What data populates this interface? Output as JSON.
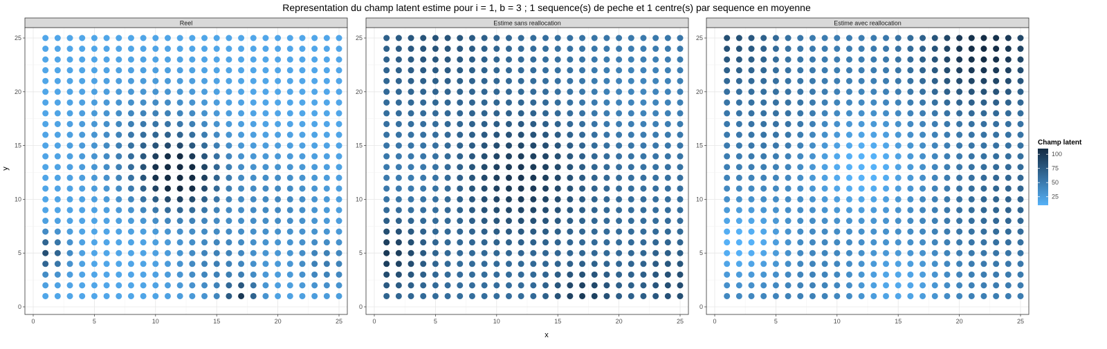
{
  "title": "Representation du champ latent estime pour i = 1, b = 3 ; 1 sequence(s) de peche et 1 centre(s) par sequence en moyenne",
  "xlabel": "x",
  "ylabel": "y",
  "legend": {
    "title": "Champ latent",
    "ticks": [
      25,
      50,
      75,
      100
    ],
    "range": [
      10,
      110
    ],
    "color_low": "#56B1F7",
    "color_high": "#132B43",
    "placement": "right"
  },
  "chart_data": {
    "type": "scatter",
    "description_of_fill": "points on a 25x25 integer grid colored by a continuous latent field value",
    "x_range": [
      0,
      25
    ],
    "y_range": [
      0,
      25
    ],
    "x_ticks": [
      0,
      5,
      10,
      15,
      20,
      25
    ],
    "y_ticks": [
      0,
      5,
      10,
      15,
      20,
      25
    ],
    "grid": true,
    "grid_x": [
      1,
      25
    ],
    "grid_y": [
      1,
      25
    ],
    "facets": [
      {
        "label": "Reel",
        "field_params": {
          "base": 18,
          "bumps": [
            {
              "cx": 12,
              "cy": 12,
              "amp": 92,
              "s": 2.2
            },
            {
              "cx": 10,
              "cy": 15,
              "amp": 38,
              "s": 3.5
            },
            {
              "cx": 1,
              "cy": 5,
              "amp": 65,
              "s": 1.3
            },
            {
              "cx": 17,
              "cy": 1,
              "amp": 72,
              "s": 1.0
            },
            {
              "cx": 15,
              "cy": 4,
              "amp": 28,
              "s": 2.5
            },
            {
              "cx": 24,
              "cy": 4,
              "amp": 30,
              "s": 1.8
            },
            {
              "cx": 20,
              "cy": 10,
              "amp": 22,
              "s": 3.0
            }
          ]
        }
      },
      {
        "label": "Estime sans reallocation",
        "field_params": {
          "base": 60,
          "bumps": [
            {
              "cx": 12,
              "cy": 12,
              "amp": 42,
              "s": 3.5
            },
            {
              "cx": 1,
              "cy": 5,
              "amp": 40,
              "s": 2.2
            },
            {
              "cx": 17,
              "cy": 1,
              "amp": 38,
              "s": 1.8
            },
            {
              "cx": 25,
              "cy": 2,
              "amp": 25,
              "s": 2.5
            },
            {
              "cx": 5,
              "cy": 25,
              "amp": 20,
              "s": 3.5
            },
            {
              "cx": 22,
              "cy": 20,
              "amp": -18,
              "s": 4.0
            },
            {
              "cx": 3,
              "cy": 12,
              "amp": -12,
              "s": 3.0
            }
          ]
        }
      },
      {
        "label": "Estime avec reallocation",
        "field_params": {
          "base": 48,
          "bumps": [
            {
              "cx": 22,
              "cy": 24,
              "amp": 62,
              "s": 3.5
            },
            {
              "cx": 1,
              "cy": 25,
              "amp": 35,
              "s": 3.0
            },
            {
              "cx": 12,
              "cy": 13,
              "amp": -42,
              "s": 3.5
            },
            {
              "cx": 2,
              "cy": 6,
              "amp": -40,
              "s": 2.8
            },
            {
              "cx": 15,
              "cy": 2,
              "amp": -32,
              "s": 2.8
            },
            {
              "cx": 24,
              "cy": 10,
              "amp": 20,
              "s": 3.5
            },
            {
              "cx": 6,
              "cy": 17,
              "amp": 12,
              "s": 3.0
            }
          ]
        }
      }
    ]
  }
}
